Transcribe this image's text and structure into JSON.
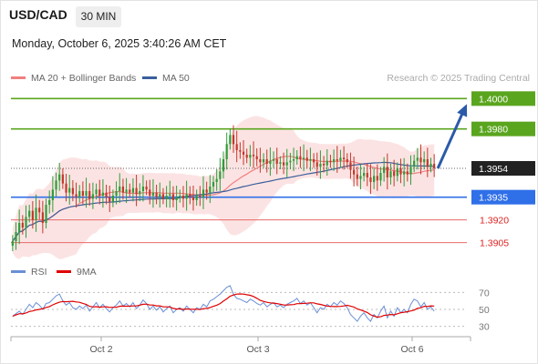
{
  "header": {
    "symbol": "USD/CAD",
    "timeframe": "30 MIN",
    "datetime": "Monday, October 6, 2025 3:40:26 AM CET"
  },
  "legend": {
    "ma20_label": "MA 20 + Bollinger Bands",
    "ma50_label": "MA 50",
    "credit": "Research © 2025 Trading Central"
  },
  "rsi_legend": {
    "rsi_label": "RSI",
    "ma_label": "9MA"
  },
  "colors": {
    "ma20": "#f08080",
    "ma50": "#3a5f9c",
    "bands": "#fbd9d9",
    "bull": "#2e9d3a",
    "bear": "#c0392b",
    "resistance": "#5aa51e",
    "support_blue": "#2f6fe8",
    "support_red": "#e86a6a",
    "arrow": "#2b5aa8",
    "current": "#222222",
    "rsi": "#6b8fd6",
    "rsi_ma": "#e00000"
  },
  "levels": [
    {
      "value": "1.4000",
      "style": "green-label"
    },
    {
      "value": "1.3980",
      "style": "green-label"
    },
    {
      "value": "1.3954",
      "style": "current"
    },
    {
      "value": "1.3935",
      "style": "blue-label"
    },
    {
      "value": "1.3920",
      "style": "red-text"
    },
    {
      "value": "1.3905",
      "style": "red-text"
    }
  ],
  "chart_data": {
    "type": "candlestick",
    "ylim": [
      1.3897,
      1.4008
    ],
    "x_ticks": [
      "Oct 2",
      "Oct 3",
      "Oct 6"
    ],
    "rsi_ticks": [
      "70",
      "50",
      "30"
    ],
    "rsi_ylim": [
      20,
      80
    ],
    "forecast_target": 1.4,
    "close": [
      1.3906,
      1.3912,
      1.3918,
      1.3915,
      1.3922,
      1.3926,
      1.392,
      1.3928,
      1.3925,
      1.3918,
      1.393,
      1.3933,
      1.394,
      1.3946,
      1.395,
      1.3944,
      1.3938,
      1.3941,
      1.3937,
      1.3935,
      1.3939,
      1.3936,
      1.3939,
      1.3934,
      1.3937,
      1.394,
      1.3936,
      1.3938,
      1.3935,
      1.3932,
      1.3936,
      1.3939,
      1.3942,
      1.3938,
      1.394,
      1.3938,
      1.3941,
      1.3937,
      1.3939,
      1.3942,
      1.394,
      1.3936,
      1.3938,
      1.3935,
      1.3937,
      1.3934,
      1.3936,
      1.3937,
      1.3933,
      1.3935,
      1.3936,
      1.3934,
      1.3937,
      1.3935,
      1.3933,
      1.3936,
      1.3935,
      1.394,
      1.3938,
      1.3942,
      1.3945,
      1.3947,
      1.3952,
      1.396,
      1.397,
      1.3976,
      1.397,
      1.3966,
      1.3965,
      1.3963,
      1.3961,
      1.3963,
      1.3962,
      1.396,
      1.3958,
      1.396,
      1.3957,
      1.3959,
      1.396,
      1.3957,
      1.3958,
      1.3956,
      1.3958,
      1.3959,
      1.396,
      1.3962,
      1.396,
      1.3961,
      1.3959,
      1.396,
      1.3958,
      1.3955,
      1.3957,
      1.3956,
      1.3959,
      1.3958,
      1.396,
      1.3959,
      1.3961,
      1.396,
      1.3958,
      1.3953,
      1.395,
      1.3947,
      1.3949,
      1.3951,
      1.3948,
      1.3945,
      1.3949,
      1.3946,
      1.3951,
      1.3955,
      1.3948,
      1.3952,
      1.3949,
      1.3954,
      1.395,
      1.3952,
      1.395,
      1.3955,
      1.3959,
      1.3961,
      1.3958,
      1.396,
      1.3955,
      1.3957,
      1.3954
    ],
    "rsi": [
      42,
      45,
      48,
      44,
      50,
      56,
      52,
      58,
      55,
      50,
      57,
      58,
      62,
      66,
      68,
      60,
      55,
      58,
      52,
      50,
      54,
      51,
      55,
      48,
      53,
      58,
      52,
      56,
      51,
      47,
      52,
      55,
      60,
      54,
      57,
      53,
      58,
      51,
      55,
      61,
      57,
      50,
      54,
      49,
      53,
      47,
      51,
      54,
      46,
      50,
      52,
      48,
      54,
      50,
      46,
      52,
      50,
      56,
      53,
      60,
      62,
      65,
      68,
      72,
      76,
      78,
      68,
      63,
      62,
      60,
      58,
      62,
      60,
      57,
      55,
      58,
      53,
      56,
      58,
      53,
      55,
      52,
      56,
      58,
      60,
      63,
      57,
      60,
      55,
      58,
      52,
      46,
      52,
      50,
      56,
      53,
      58,
      55,
      60,
      57,
      52,
      44,
      40,
      36,
      42,
      46,
      40,
      36,
      44,
      40,
      48,
      54,
      40,
      48,
      42,
      52,
      46,
      50,
      46,
      56,
      62,
      60,
      53,
      58,
      50,
      53,
      48
    ]
  }
}
